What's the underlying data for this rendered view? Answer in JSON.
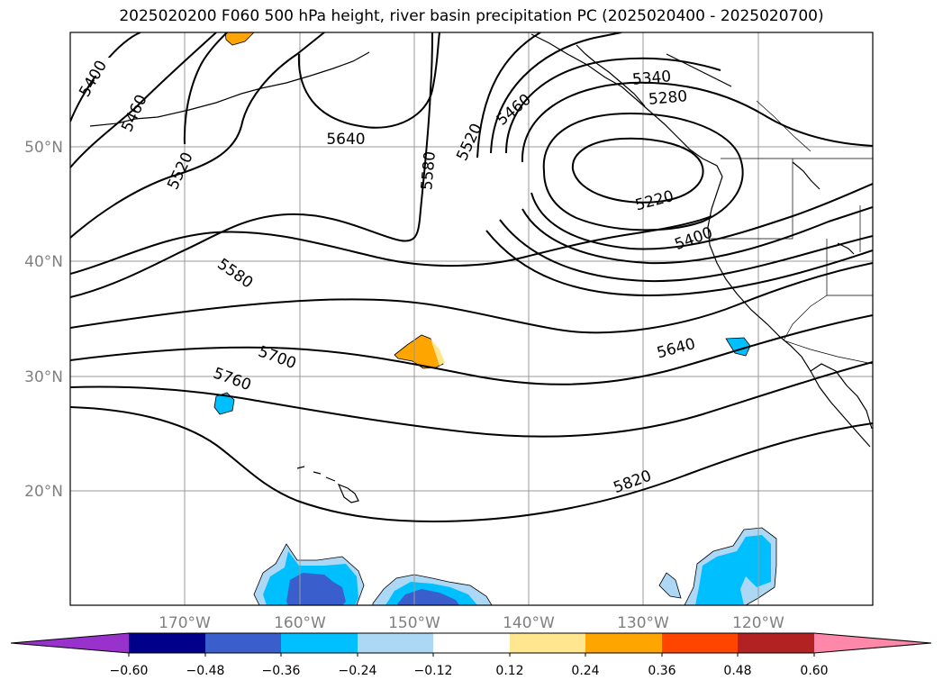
{
  "title": "2025020200 F060 500 hPa height, river basin precipitation PC (2025020400 - 2025020700)",
  "lat_labels": [
    "50°N",
    "40°N",
    "30°N",
    "20°N"
  ],
  "lon_labels": [
    "170°W",
    "160°W",
    "150°W",
    "140°W",
    "130°W",
    "120°W"
  ],
  "contour_labels": [
    "5400",
    "5460",
    "5520",
    "5640",
    "5580",
    "5520",
    "5460",
    "5340",
    "5280",
    "5220",
    "5400",
    "5580",
    "5700",
    "5760",
    "5640",
    "5820"
  ],
  "colorbar": {
    "ticks": [
      "−0.60",
      "−0.48",
      "−0.36",
      "−0.24",
      "−0.12",
      "0.12",
      "0.24",
      "0.36",
      "0.48",
      "0.60"
    ],
    "colors": [
      "#9932cc",
      "#00008b",
      "#3a5fcd",
      "#00bfff",
      "#add8f5",
      "#ffffff",
      "#ffe68f",
      "#ffa500",
      "#ff4500",
      "#b22222",
      "#ff88aa"
    ]
  },
  "colors": {
    "contour": "#000000",
    "grid": "#999999",
    "coast": "#000000"
  }
}
